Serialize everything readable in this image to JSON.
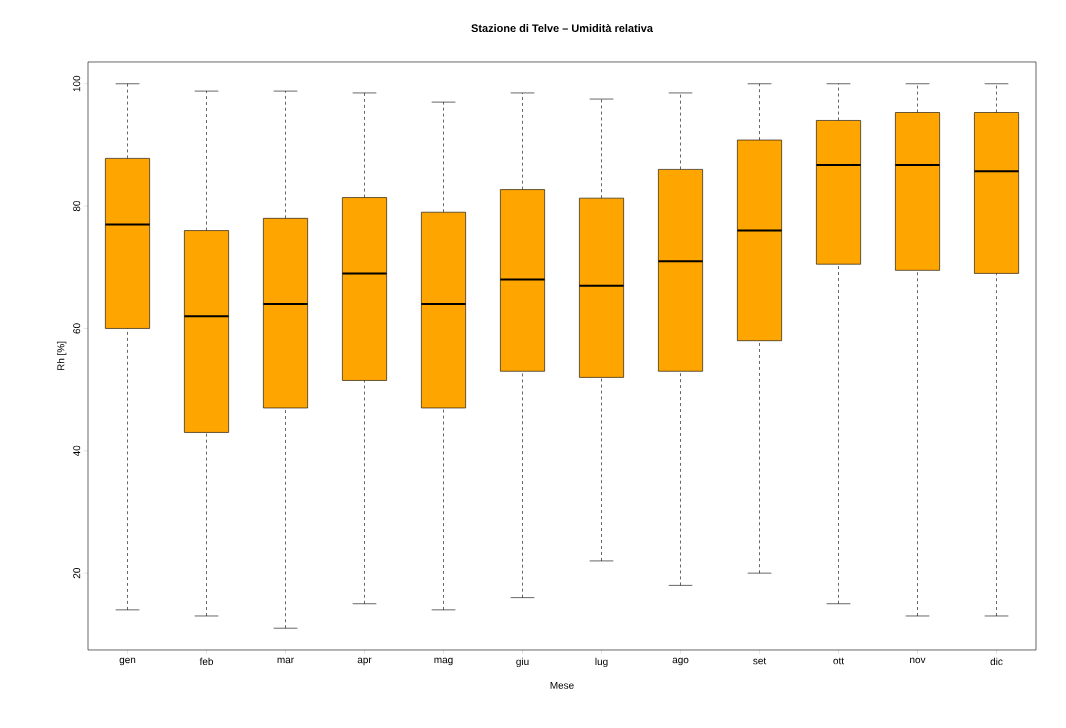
{
  "chart_data": {
    "type": "box",
    "title": "Stazione di Telve – Umidità relativa",
    "xlabel": "Mese",
    "ylabel": "Rh [%]",
    "categories": [
      "gen",
      "feb",
      "mar",
      "apr",
      "mag",
      "giu",
      "lug",
      "ago",
      "set",
      "ott",
      "nov",
      "dic"
    ],
    "color": "#ffa500",
    "ylim": [
      7.44,
      103.56
    ],
    "yticks": [
      20,
      40,
      60,
      80,
      100
    ],
    "boxes": [
      {
        "low": 14,
        "q1": 60,
        "median": 77,
        "q3": 87.8,
        "high": 100
      },
      {
        "low": 13,
        "q1": 43,
        "median": 62,
        "q3": 76,
        "high": 98.8
      },
      {
        "low": 11,
        "q1": 47,
        "median": 64,
        "q3": 78,
        "high": 98.8
      },
      {
        "low": 15,
        "q1": 51.5,
        "median": 69,
        "q3": 81.4,
        "high": 98.5
      },
      {
        "low": 14,
        "q1": 47,
        "median": 64,
        "q3": 79,
        "high": 97
      },
      {
        "low": 16,
        "q1": 53,
        "median": 68,
        "q3": 82.7,
        "high": 98.5
      },
      {
        "low": 22,
        "q1": 52,
        "median": 67,
        "q3": 81.3,
        "high": 97.5
      },
      {
        "low": 18,
        "q1": 53,
        "median": 71,
        "q3": 86,
        "high": 98.5
      },
      {
        "low": 20,
        "q1": 58,
        "median": 76,
        "q3": 90.8,
        "high": 100
      },
      {
        "low": 15,
        "q1": 70.5,
        "median": 86.7,
        "q3": 94,
        "high": 100
      },
      {
        "low": 13,
        "q1": 69.5,
        "median": 86.7,
        "q3": 95.3,
        "high": 100
      },
      {
        "low": 13,
        "q1": 69,
        "median": 85.7,
        "q3": 95.3,
        "high": 100
      }
    ]
  }
}
